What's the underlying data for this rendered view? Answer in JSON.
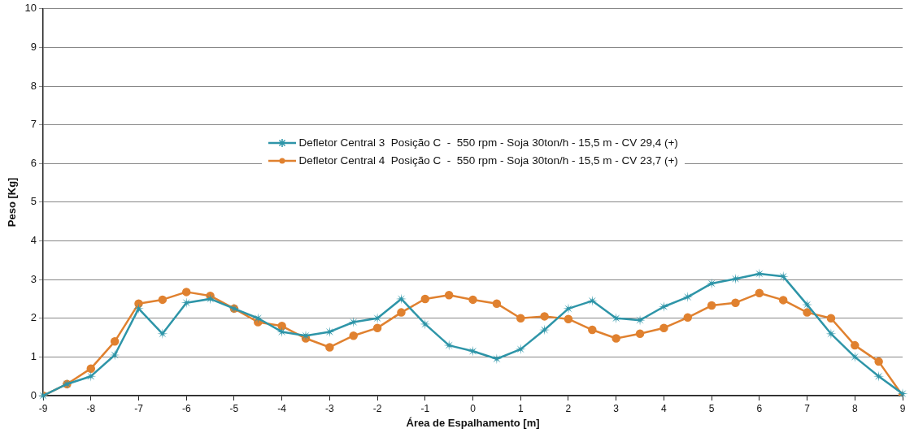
{
  "chart_data": {
    "type": "line",
    "xlabel": "Área de Espalhamento [m]",
    "ylabel": "Peso [Kg]",
    "x": [
      -9,
      -8.5,
      -8,
      -7.5,
      -7,
      -6.5,
      -6,
      -5.5,
      -5,
      -4.5,
      -4,
      -3.5,
      -3,
      -2.5,
      -2,
      -1.5,
      -1,
      -0.5,
      0,
      0.5,
      1,
      1.5,
      2,
      2.5,
      3,
      3.5,
      4,
      4.5,
      5,
      5.5,
      6,
      6.5,
      7,
      7.5,
      8,
      8.5,
      9
    ],
    "series": [
      {
        "name": "Defletor Central 3  Posição C  -  550 rpm - Soja 30ton/h - 15,5 m - CV 29,4 (+)",
        "color": "#2e95a8",
        "marker": "star",
        "values": [
          0,
          0.3,
          0.5,
          1.05,
          2.25,
          1.6,
          2.4,
          2.5,
          2.25,
          2.0,
          1.65,
          1.55,
          1.65,
          1.9,
          2.0,
          2.5,
          1.85,
          1.3,
          1.15,
          0.95,
          1.2,
          1.7,
          2.25,
          2.45,
          2.0,
          1.95,
          2.3,
          2.55,
          2.9,
          3.02,
          3.15,
          3.08,
          2.35,
          1.6,
          1.0,
          0.5,
          0.05
        ]
      },
      {
        "name": "Defletor Central 4  Posição C  -  550 rpm - Soja 30ton/h - 15,5 m - CV 23,7 (+)",
        "color": "#e0812f",
        "marker": "circle",
        "values": [
          0,
          0.3,
          0.7,
          1.4,
          2.38,
          2.48,
          2.68,
          2.58,
          2.25,
          1.9,
          1.8,
          1.48,
          1.25,
          1.55,
          1.75,
          2.15,
          2.5,
          2.6,
          2.48,
          2.38,
          2.0,
          2.05,
          1.98,
          1.7,
          1.48,
          1.6,
          1.75,
          2.02,
          2.33,
          2.4,
          2.65,
          2.47,
          2.15,
          2.0,
          1.3,
          0.88,
          0
        ]
      }
    ],
    "xlim": [
      -9,
      9
    ],
    "xticks": [
      -9,
      -8,
      -7,
      -6,
      -5,
      -4,
      -3,
      -2,
      -1,
      0,
      1,
      2,
      3,
      4,
      5,
      6,
      7,
      8,
      9
    ],
    "ylim": [
      0,
      10
    ],
    "yticks": [
      0,
      1,
      2,
      3,
      4,
      5,
      6,
      7,
      8,
      9,
      10
    ],
    "grid": "y",
    "legend": "center",
    "line_style": "solid"
  }
}
